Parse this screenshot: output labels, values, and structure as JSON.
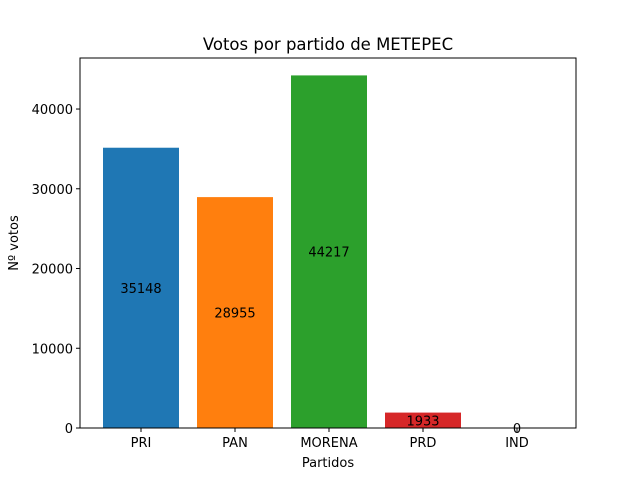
{
  "chart_data": {
    "type": "bar",
    "title": "Votos por partido de METEPEC",
    "xlabel": "Partidos",
    "ylabel": "Nº votos",
    "categories": [
      "PRI",
      "PAN",
      "MORENA",
      "PRD",
      "IND"
    ],
    "values": [
      35148,
      28955,
      44217,
      1933,
      0
    ],
    "value_labels": [
      "35148",
      "28955",
      "44217",
      "1933",
      "0"
    ],
    "colors": [
      "#1f77b4",
      "#ff7f0e",
      "#2ca02c",
      "#d62728",
      "#9467bd"
    ],
    "ylim": [
      0,
      46400
    ],
    "yticks": [
      0,
      10000,
      20000,
      30000,
      40000
    ],
    "ytick_labels": [
      "0",
      "10000",
      "20000",
      "30000",
      "40000"
    ],
    "grid": false,
    "legend": "none"
  }
}
